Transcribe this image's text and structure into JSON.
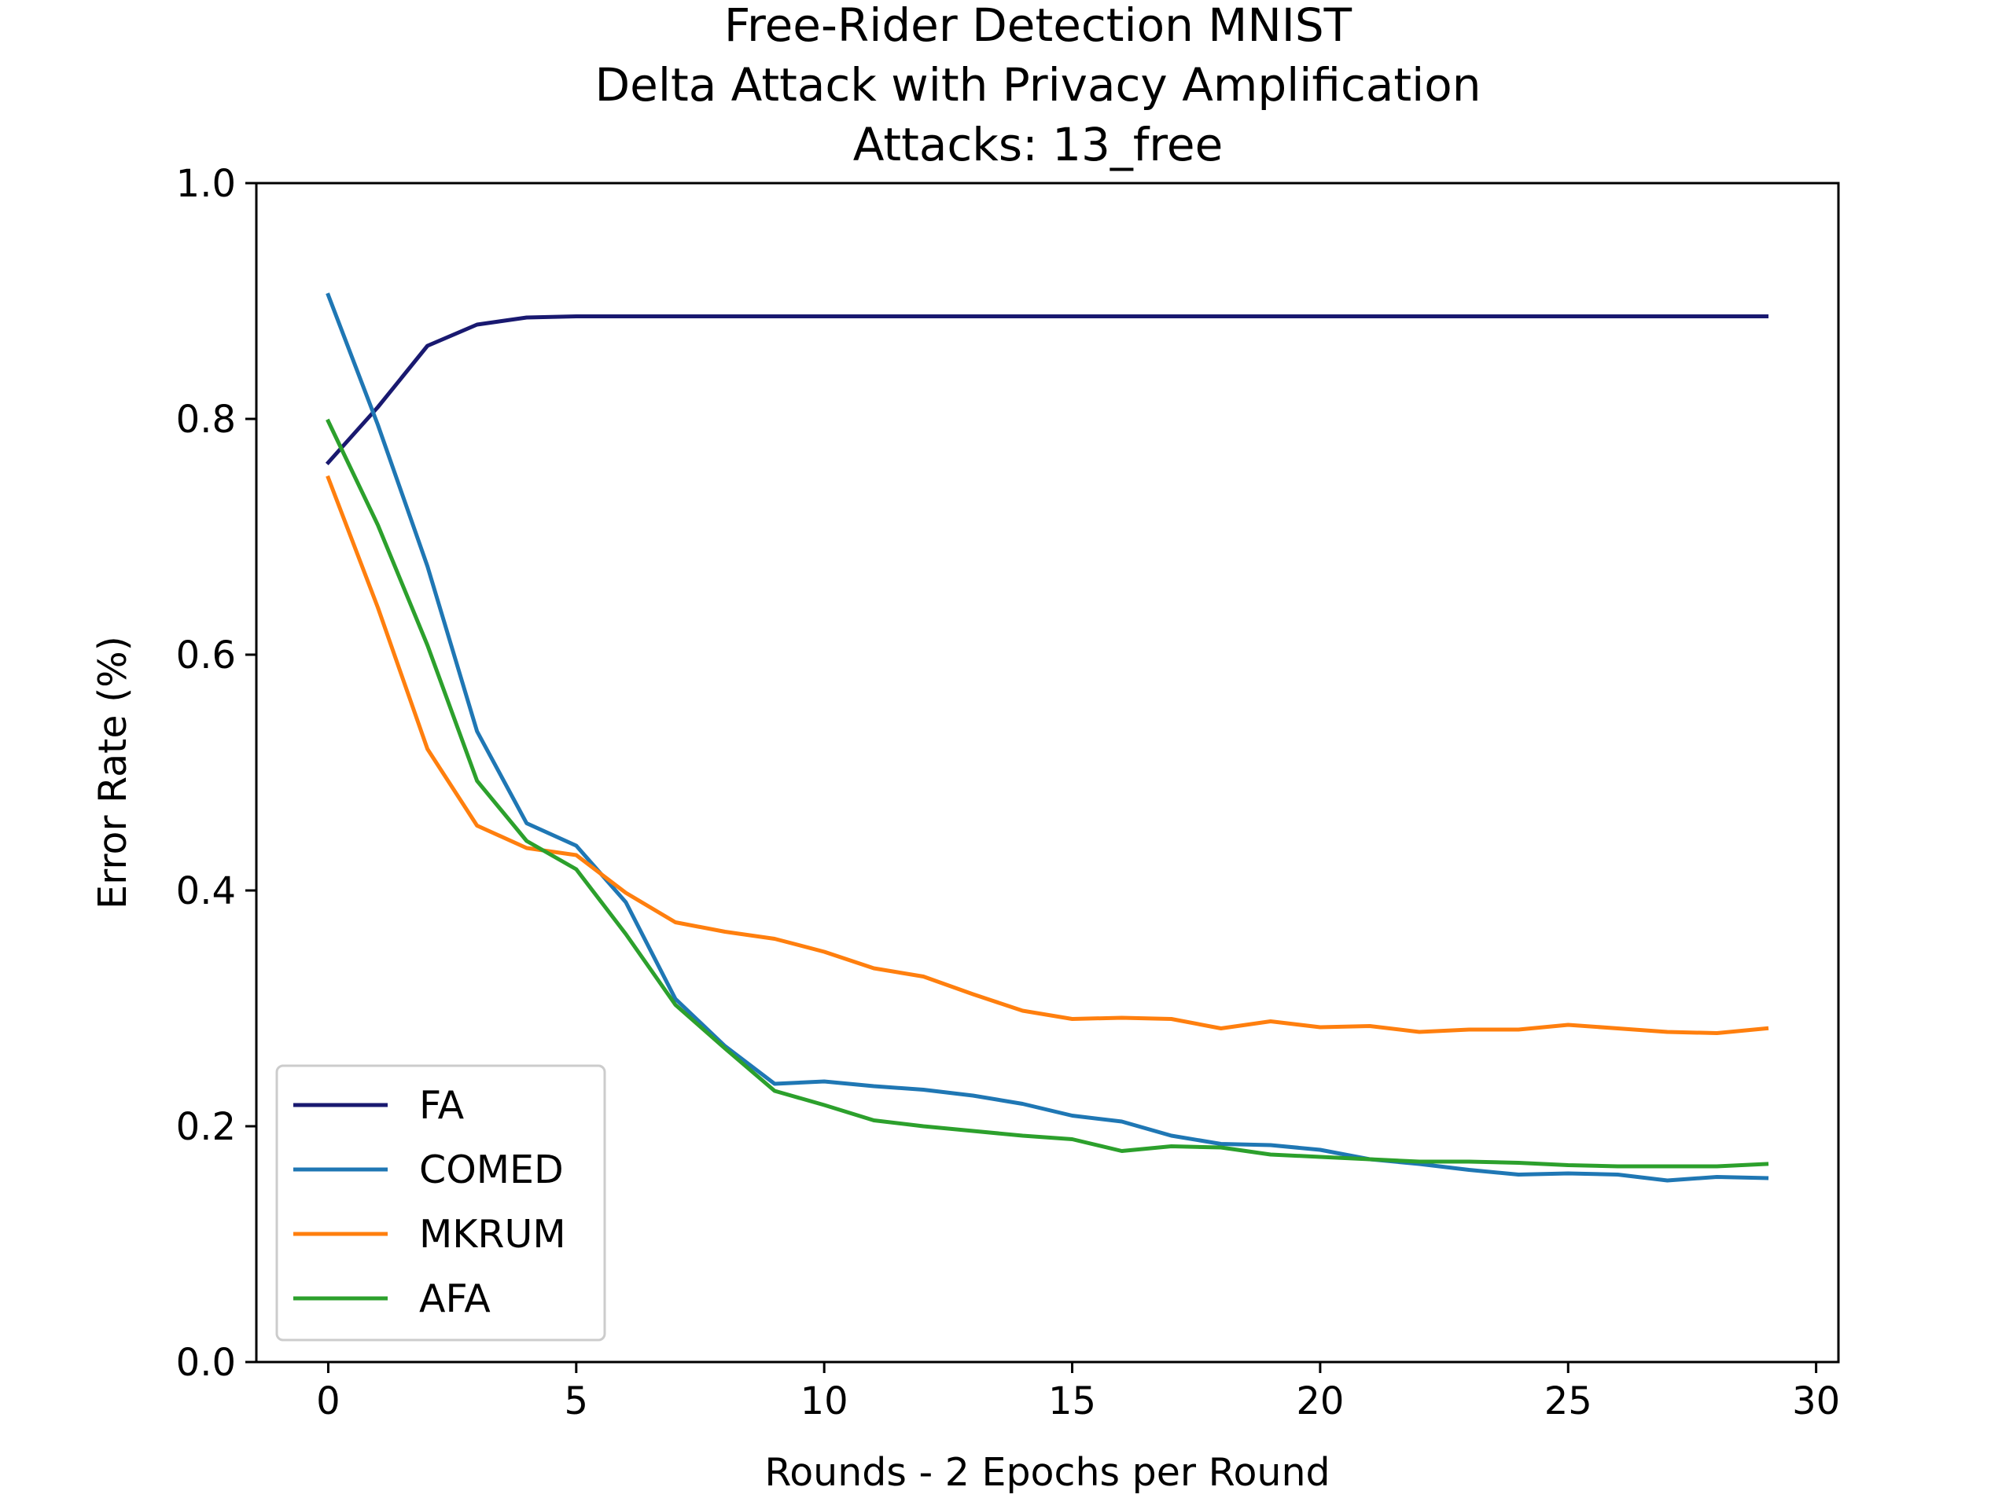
{
  "chart_data": {
    "type": "line",
    "title_lines": [
      "Free-Rider Detection MNIST",
      "Delta Attack with Privacy Amplification",
      "Attacks: 13_free"
    ],
    "xlabel": "Rounds - 2 Epochs per Round",
    "ylabel": "Error Rate (%)",
    "xlim": [
      -1.45,
      30.45
    ],
    "ylim": [
      0.0,
      1.0
    ],
    "xticks": [
      0,
      5,
      10,
      15,
      20,
      25,
      30
    ],
    "xtick_labels": [
      "0",
      "5",
      "10",
      "15",
      "20",
      "25",
      "30"
    ],
    "yticks": [
      0.0,
      0.2,
      0.4,
      0.6,
      0.8,
      1.0
    ],
    "ytick_labels": [
      "0.0",
      "0.2",
      "0.4",
      "0.6",
      "0.8",
      "1.0"
    ],
    "grid": false,
    "legend_position": "lower-left",
    "x": [
      0,
      1,
      2,
      3,
      4,
      5,
      6,
      7,
      8,
      9,
      10,
      11,
      12,
      13,
      14,
      15,
      16,
      17,
      18,
      19,
      20,
      21,
      22,
      23,
      24,
      25,
      26,
      27,
      28,
      29
    ],
    "series": [
      {
        "name": "FA",
        "color": "#191970",
        "values": [
          0.763,
          0.81,
          0.862,
          0.88,
          0.886,
          0.887,
          0.887,
          0.887,
          0.887,
          0.887,
          0.887,
          0.887,
          0.887,
          0.887,
          0.887,
          0.887,
          0.887,
          0.887,
          0.887,
          0.887,
          0.887,
          0.887,
          0.887,
          0.887,
          0.887,
          0.887,
          0.887,
          0.887,
          0.887,
          0.887
        ]
      },
      {
        "name": "COMED",
        "color": "#1f77b4",
        "values": [
          0.905,
          0.795,
          0.675,
          0.535,
          0.457,
          0.438,
          0.39,
          0.308,
          0.268,
          0.236,
          0.238,
          0.234,
          0.231,
          0.226,
          0.219,
          0.209,
          0.204,
          0.192,
          0.185,
          0.184,
          0.18,
          0.172,
          0.168,
          0.163,
          0.159,
          0.16,
          0.159,
          0.154,
          0.157,
          0.156
        ]
      },
      {
        "name": "MKRUM",
        "color": "#ff7f0e",
        "values": [
          0.75,
          0.64,
          0.52,
          0.455,
          0.436,
          0.43,
          0.398,
          0.373,
          0.365,
          0.359,
          0.348,
          0.334,
          0.327,
          0.312,
          0.298,
          0.291,
          0.292,
          0.291,
          0.283,
          0.289,
          0.284,
          0.285,
          0.28,
          0.282,
          0.282,
          0.286,
          0.283,
          0.28,
          0.279,
          0.283
        ]
      },
      {
        "name": "AFA",
        "color": "#2ca02c",
        "values": [
          0.798,
          0.71,
          0.608,
          0.493,
          0.442,
          0.418,
          0.363,
          0.303,
          0.266,
          0.23,
          0.218,
          0.205,
          0.2,
          0.196,
          0.192,
          0.189,
          0.179,
          0.183,
          0.182,
          0.176,
          0.174,
          0.172,
          0.17,
          0.17,
          0.169,
          0.167,
          0.166,
          0.166,
          0.166,
          0.168
        ]
      }
    ]
  }
}
